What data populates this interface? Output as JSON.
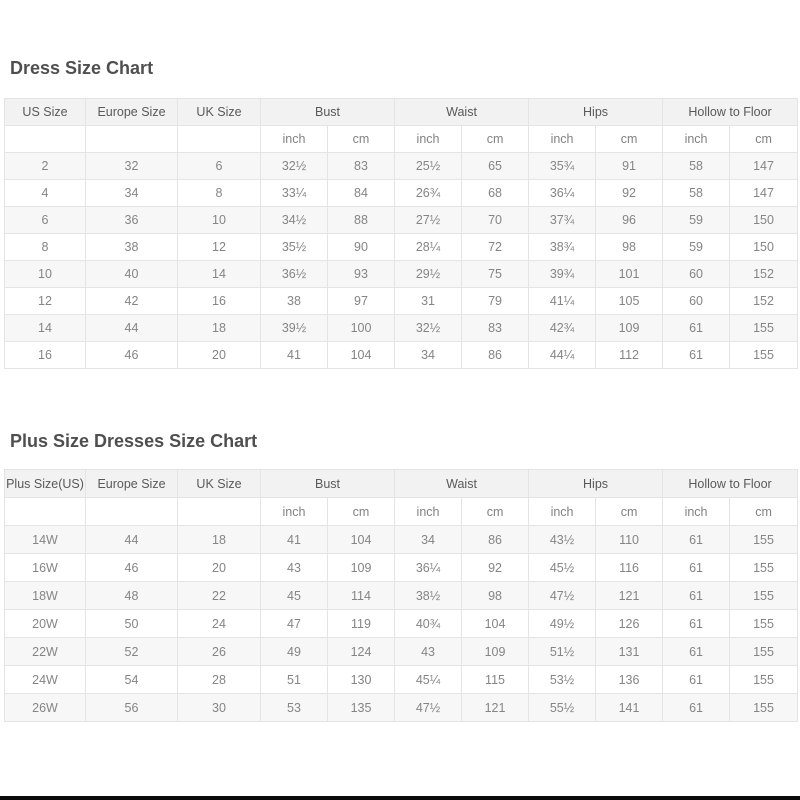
{
  "theme": {
    "page_background": "#ffffff",
    "header_background": "#f2f2f2",
    "stripe_background": "#f7f7f7",
    "border_color": "#e4e4e4",
    "title_color": "#4f4f4f",
    "header_text_color": "#595959",
    "data_text_color": "#858585",
    "bottom_bar_color": "#0a0a0a"
  },
  "dress_chart": {
    "title": "Dress Size Chart",
    "columns": [
      "US Size",
      "Europe Size",
      "UK Size",
      "Bust",
      "Waist",
      "Hips",
      "Hollow to Floor"
    ],
    "unit_labels": [
      "inch",
      "cm"
    ],
    "rows": [
      [
        "2",
        "32",
        "6",
        "32½",
        "83",
        "25½",
        "65",
        "35¾",
        "91",
        "58",
        "147"
      ],
      [
        "4",
        "34",
        "8",
        "33¼",
        "84",
        "26¾",
        "68",
        "36¼",
        "92",
        "58",
        "147"
      ],
      [
        "6",
        "36",
        "10",
        "34½",
        "88",
        "27½",
        "70",
        "37¾",
        "96",
        "59",
        "150"
      ],
      [
        "8",
        "38",
        "12",
        "35½",
        "90",
        "28¼",
        "72",
        "38¾",
        "98",
        "59",
        "150"
      ],
      [
        "10",
        "40",
        "14",
        "36½",
        "93",
        "29½",
        "75",
        "39¾",
        "101",
        "60",
        "152"
      ],
      [
        "12",
        "42",
        "16",
        "38",
        "97",
        "31",
        "79",
        "41¼",
        "105",
        "60",
        "152"
      ],
      [
        "14",
        "44",
        "18",
        "39½",
        "100",
        "32½",
        "83",
        "42¾",
        "109",
        "61",
        "155"
      ],
      [
        "16",
        "46",
        "20",
        "41",
        "104",
        "34",
        "86",
        "44¼",
        "112",
        "61",
        "155"
      ]
    ]
  },
  "plus_chart": {
    "title": "Plus Size Dresses Size Chart",
    "columns": [
      "Plus Size(US)",
      "Europe Size",
      "UK Size",
      "Bust",
      "Waist",
      "Hips",
      "Hollow to Floor"
    ],
    "unit_labels": [
      "inch",
      "cm"
    ],
    "rows": [
      [
        "14W",
        "44",
        "18",
        "41",
        "104",
        "34",
        "86",
        "43½",
        "110",
        "61",
        "155"
      ],
      [
        "16W",
        "46",
        "20",
        "43",
        "109",
        "36¼",
        "92",
        "45½",
        "116",
        "61",
        "155"
      ],
      [
        "18W",
        "48",
        "22",
        "45",
        "114",
        "38½",
        "98",
        "47½",
        "121",
        "61",
        "155"
      ],
      [
        "20W",
        "50",
        "24",
        "47",
        "119",
        "40¾",
        "104",
        "49½",
        "126",
        "61",
        "155"
      ],
      [
        "22W",
        "52",
        "26",
        "49",
        "124",
        "43",
        "109",
        "51½",
        "131",
        "61",
        "155"
      ],
      [
        "24W",
        "54",
        "28",
        "51",
        "130",
        "45¼",
        "115",
        "53½",
        "136",
        "61",
        "155"
      ],
      [
        "26W",
        "56",
        "30",
        "53",
        "135",
        "47½",
        "121",
        "55½",
        "141",
        "61",
        "155"
      ]
    ]
  }
}
